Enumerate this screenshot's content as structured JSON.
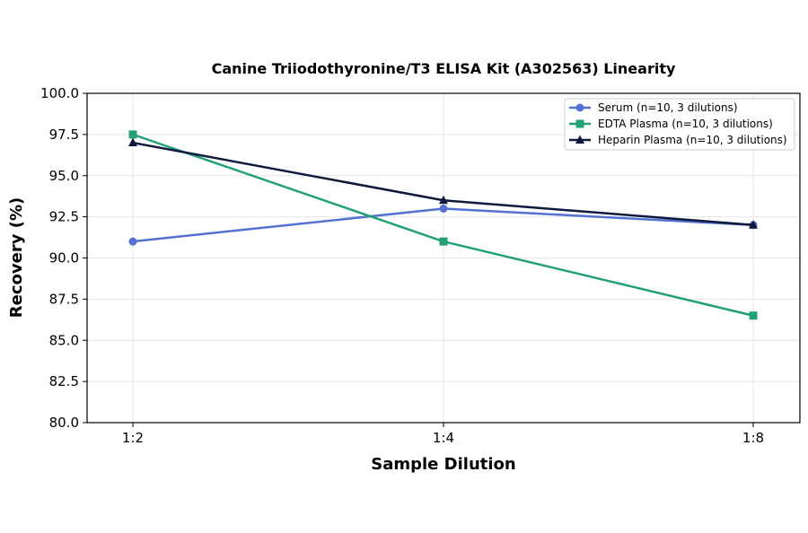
{
  "chart_data": {
    "type": "line",
    "title": "Canine Triiodothyronine/T3 ELISA Kit (A302563) Linearity",
    "xlabel": "Sample Dilution",
    "ylabel": "Recovery (%)",
    "categories": [
      "1:2",
      "1:4",
      "1:8"
    ],
    "ylim": [
      80.0,
      100.0
    ],
    "yticks": [
      "80.0",
      "82.5",
      "85.0",
      "87.5",
      "90.0",
      "92.5",
      "95.0",
      "97.5",
      "100.0"
    ],
    "grid": true,
    "legend_position": "top-right",
    "series": [
      {
        "name": "Serum (n=10, 3 dilutions)",
        "values": [
          91.0,
          93.0,
          92.0
        ],
        "color": "#5470d1",
        "marker": "circle"
      },
      {
        "name": "EDTA Plasma (n=10, 3 dilutions)",
        "values": [
          97.5,
          91.0,
          86.5
        ],
        "color": "#23a077",
        "marker": "square"
      },
      {
        "name": "Heparin Plasma (n=10, 3 dilutions)",
        "values": [
          97.0,
          93.5,
          92.0
        ],
        "color": "#0e1a3d",
        "marker": "triangle"
      }
    ]
  }
}
